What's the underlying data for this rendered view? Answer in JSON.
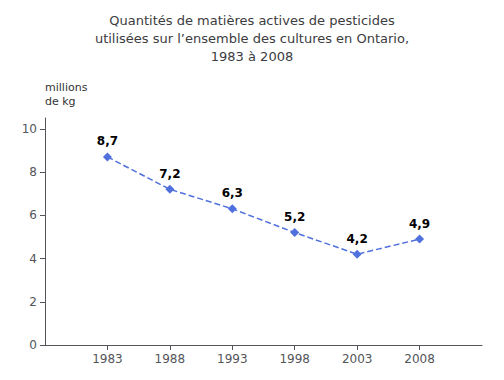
{
  "chart_data": {
    "type": "line",
    "title": "Quantités de matières actives de pesticides\nutilisées sur l’ensemble des cultures en Ontario,\n1983 à 2008",
    "ylabel": "millions\nde kg",
    "x": [
      1983,
      1988,
      1993,
      1998,
      2003,
      2008
    ],
    "values": [
      8.7,
      7.2,
      6.3,
      5.2,
      4.2,
      4.9
    ],
    "value_labels": [
      "8,7",
      "7,2",
      "6,3",
      "5,2",
      "4,2",
      "4,9"
    ],
    "data_labels": true,
    "xlim": [
      1978,
      2013
    ],
    "ylim": [
      0,
      10.5
    ],
    "xticks": [
      1983,
      1988,
      1993,
      1998,
      2003,
      2008
    ],
    "yticks": [
      0,
      2,
      4,
      6,
      8,
      10
    ],
    "marker": "diamond",
    "line_style": "dashed",
    "grid": false
  }
}
